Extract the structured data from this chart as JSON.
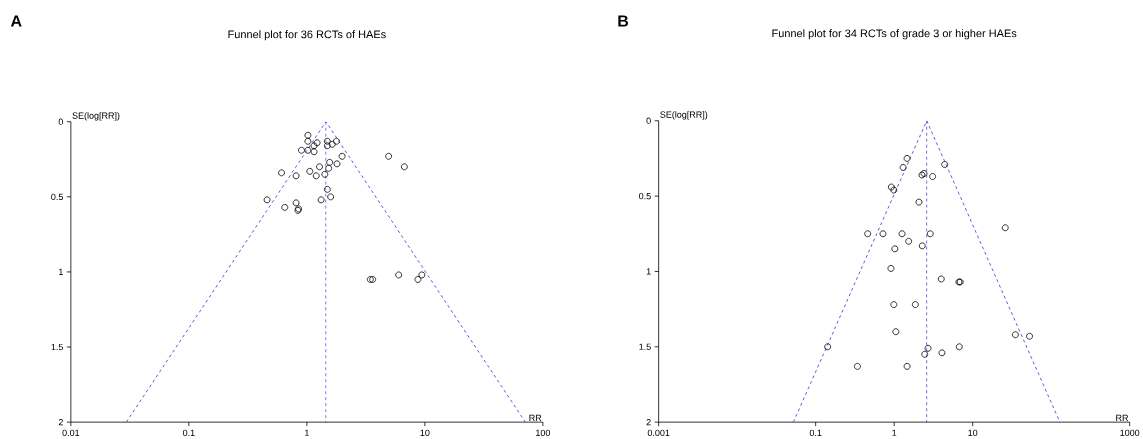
{
  "chart_data": [
    {
      "type": "scatter",
      "title": "Funnel plot for 36 RCTs of HAEs",
      "annotations": [
        "A"
      ],
      "xlabel": "RR",
      "ylabel": "SE(log[RR])",
      "log": "x",
      "xlim": [
        0.01,
        100
      ],
      "ylim": [
        2,
        0
      ],
      "xticks": [
        0.01,
        0.1,
        1,
        10,
        100
      ],
      "yticks": [
        0,
        0.5,
        1,
        1.5,
        2
      ],
      "series": [
        {
          "type": "line",
          "color": "#3333dd",
          "line_style": "dashed",
          "marker": "none",
          "x": [
            0.0295,
            1.45,
            71
          ],
          "values": [
            2,
            0,
            2
          ]
        },
        {
          "type": "line",
          "color": "#3333dd",
          "line_style": "dashed",
          "marker": "none",
          "x": [
            1.45,
            1.45
          ],
          "values": [
            0,
            2
          ]
        },
        {
          "color": "#000000",
          "marker": "circle",
          "x": [
            1.02,
            1.02,
            1.22,
            1.15,
            0.9,
            1.02,
            1.15,
            1.49,
            1.49,
            1.64,
            1.78,
            1.99,
            4.93,
            6.7,
            0.61,
            0.81,
            1.06,
            1.28,
            1.2,
            1.42,
            1.56,
            1.53,
            1.8,
            1.49,
            1.59,
            1.32,
            0.46,
            0.81,
            0.65,
            0.85,
            0.84,
            3.45,
            3.61,
            6.0,
            8.73,
            9.43
          ],
          "values": [
            0.09,
            0.13,
            0.14,
            0.16,
            0.19,
            0.19,
            0.2,
            0.13,
            0.16,
            0.15,
            0.13,
            0.23,
            0.23,
            0.3,
            0.34,
            0.36,
            0.33,
            0.3,
            0.36,
            0.35,
            0.27,
            0.31,
            0.28,
            0.45,
            0.5,
            0.52,
            0.52,
            0.54,
            0.57,
            0.58,
            0.59,
            1.05,
            1.05,
            1.02,
            1.05,
            1.02
          ]
        }
      ]
    },
    {
      "type": "scatter",
      "title": "Funnel plot for 34 RCTs of grade 3 or higher HAEs",
      "annotations": [
        "B"
      ],
      "xlabel": "RR",
      "ylabel": "SE(log[RR])",
      "log": "x",
      "xlim": [
        0.001,
        1000
      ],
      "ylim": [
        2,
        0
      ],
      "xticks": [
        0.001,
        0.1,
        1,
        10,
        1000
      ],
      "yticks": [
        0,
        0.5,
        1,
        1.5,
        2
      ],
      "series": [
        {
          "type": "line",
          "color": "#3333dd",
          "line_style": "dashed",
          "marker": "none",
          "x": [
            0.052,
            2.6,
            129
          ],
          "values": [
            2,
            0,
            2
          ]
        },
        {
          "type": "line",
          "color": "#3333dd",
          "line_style": "dashed",
          "marker": "none",
          "x": [
            2.6,
            2.6
          ],
          "values": [
            0,
            2
          ]
        },
        {
          "color": "#000000",
          "marker": "circle",
          "x": [
            1.46,
            4.4,
            1.3,
            2.4,
            2.26,
            3.09,
            0.92,
            0.99,
            2.07,
            26,
            0.46,
            0.72,
            1.26,
            2.88,
            1.53,
            1.02,
            2.28,
            0.91,
            3.98,
            6.68,
            6.93,
            0.99,
            1.86,
            1.05,
            0.142,
            2.7,
            2.45,
            4.06,
            6.75,
            0.34,
            1.46,
            35,
            53
          ],
          "values": [
            0.25,
            0.29,
            0.31,
            0.35,
            0.36,
            0.37,
            0.44,
            0.46,
            0.54,
            0.71,
            0.75,
            0.75,
            0.75,
            0.75,
            0.8,
            0.85,
            0.83,
            0.98,
            1.05,
            1.07,
            1.07,
            1.22,
            1.22,
            1.4,
            1.5,
            1.51,
            1.55,
            1.54,
            1.5,
            1.63,
            1.63,
            1.42,
            1.43
          ]
        }
      ]
    }
  ]
}
